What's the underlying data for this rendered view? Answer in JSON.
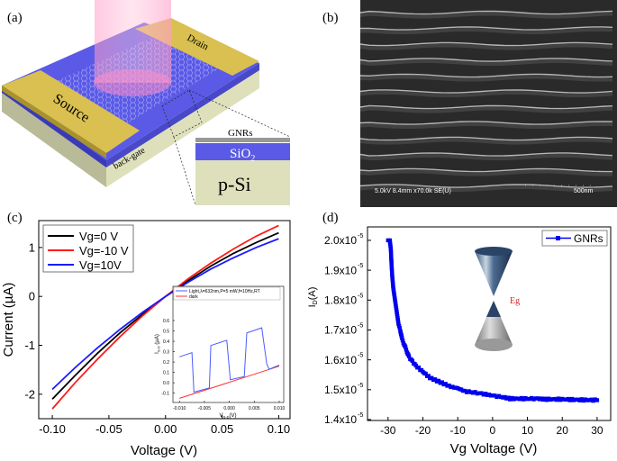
{
  "panels": {
    "a": {
      "label": "(a)",
      "source": "Source",
      "drain": "Drain",
      "back_gate": "back-gate",
      "gnrs": "GNRs",
      "sio2": "SiO",
      "sio2_sub": "2",
      "psi": "p-Si"
    },
    "b": {
      "label": "(b)",
      "sem_info": "5.0kV 8.4mm x70.0k SE(U)",
      "scale_bar": "500nm"
    },
    "c": {
      "label": "(c)"
    },
    "d": {
      "label": "(d)",
      "eg_label": "Eg"
    }
  },
  "colors": {
    "black_curve": "#000000",
    "red_curve": "#ff1a1a",
    "blue_curve": "#1a1aff",
    "inset_light": "#4a5cff",
    "inset_dark": "#ff3030",
    "gnrs_series": "#0000ee",
    "sio2": "#5a5ae6",
    "gold": "#d9c050",
    "substrate": "#dde0bb",
    "eg": "#e02020"
  },
  "chart_data": [
    {
      "type": "line",
      "xlabel": "Voltage (V)",
      "ylabel": "Current (µA)",
      "xlim": [
        -0.112,
        0.11
      ],
      "ylim": [
        -2.5,
        1.55
      ],
      "xticks": [
        -0.1,
        -0.05,
        0,
        0.05,
        0.1
      ],
      "xtick_labels": [
        "-0.10",
        "-0.05",
        "0.00",
        "0.05",
        "0.10"
      ],
      "yticks": [
        -2,
        -1,
        0,
        1
      ],
      "ytick_labels": [
        "-2",
        "-1",
        "0",
        "1"
      ],
      "legend": "top-left",
      "x": [
        -0.1,
        -0.08,
        -0.06,
        -0.04,
        -0.02,
        0,
        0.02,
        0.04,
        0.06,
        0.08,
        0.1
      ],
      "series": [
        {
          "name": "Vg=0 V",
          "color": "#000000",
          "values": [
            -2.1,
            -1.62,
            -1.16,
            -0.74,
            -0.36,
            0,
            0.32,
            0.62,
            0.88,
            1.1,
            1.3
          ]
        },
        {
          "name": "Vg=-10 V",
          "color": "#ff1a1a",
          "values": [
            -2.3,
            -1.77,
            -1.28,
            -0.82,
            -0.39,
            0,
            0.36,
            0.68,
            0.97,
            1.23,
            1.45
          ]
        },
        {
          "name": "Vg=10V",
          "color": "#1a1aff",
          "values": [
            -1.9,
            -1.46,
            -1.05,
            -0.67,
            -0.32,
            0,
            0.29,
            0.56,
            0.79,
            1.0,
            1.18
          ]
        }
      ]
    },
    {
      "type": "line",
      "xlabel": "V",
      "xlabel_sub": "S-D",
      "xlabel_unit": "(V)",
      "ylabel": "I",
      "ylabel_sub": "S-D",
      "ylabel_unit": " (µA)",
      "xlim": [
        -0.0113,
        0.0109
      ],
      "ylim": [
        -0.19,
        0.93
      ],
      "xticks": [
        -0.01,
        -0.005,
        0,
        0.005,
        0.01
      ],
      "xtick_labels": [
        "-0.010",
        "-0.005",
        "0.000",
        "0.005",
        "0.010"
      ],
      "yticks": [
        -0.1,
        0,
        0.1,
        0.2,
        0.3,
        0.4,
        0.5,
        0.6
      ],
      "ytick_labels": [
        "-0.1",
        "0.0",
        "0.1",
        "0.2",
        "0.3",
        "0.4",
        "0.5",
        "0.6"
      ],
      "legend": "top",
      "series": [
        {
          "name": "Light,λ=632nm,P=5 mW,f=10Hz,RT",
          "color": "#4a5cff",
          "x": [
            -0.01,
            -0.0075,
            -0.0071,
            -0.004,
            -0.0037,
            -0.0005,
            0.0002,
            0.003,
            0.0035,
            0.0065,
            0.0075,
            0.008,
            0.01
          ],
          "y": [
            0.25,
            0.29,
            -0.09,
            -0.05,
            0.36,
            0.41,
            0.03,
            0.06,
            0.48,
            0.53,
            0.18,
            0.13,
            0.17
          ]
        },
        {
          "name": "dark",
          "color": "#ff3030",
          "x": [
            -0.01,
            0.01
          ],
          "y": [
            -0.15,
            0.16
          ]
        }
      ]
    },
    {
      "type": "line",
      "xlabel": "Vg Voltage (V)",
      "ylabel": "I",
      "ylabel_sub": "D",
      "ylabel_unit": "(A)",
      "xlim": [
        -35.9,
        33.9
      ],
      "ylim": [
        1.397e-05,
        2.045e-05
      ],
      "xticks": [
        -30,
        -20,
        -10,
        0,
        10,
        20,
        30
      ],
      "xtick_labels": [
        "-30",
        "-20",
        "-10",
        "0",
        "10",
        "20",
        "30"
      ],
      "yticks": [
        1.4e-05,
        1.5e-05,
        1.6e-05,
        1.7e-05,
        1.8e-05,
        1.9e-05,
        2e-05
      ],
      "ytick_labels": [
        {
          "base": "1.4x10",
          "exp": "-5"
        },
        {
          "base": "1.5x10",
          "exp": "-5"
        },
        {
          "base": "1.6x10",
          "exp": "-5"
        },
        {
          "base": "1.7x10",
          "exp": "-5"
        },
        {
          "base": "1.8x10",
          "exp": "-5"
        },
        {
          "base": "1.9x10",
          "exp": "-5"
        },
        {
          "base": "2.0x10",
          "exp": "-5"
        }
      ],
      "legend": "top-right",
      "series": [
        {
          "name": "GNRs",
          "color": "#0000ee",
          "marker": "square",
          "x": [
            -30,
            -29.5,
            -29.2,
            -29,
            -28.8,
            -28.5,
            -28,
            -27.5,
            -27,
            -26.5,
            -26,
            -25,
            -24,
            -22,
            -20,
            -18,
            -15,
            -12,
            -10,
            -8,
            -5,
            -2,
            0,
            3,
            5,
            10,
            13,
            15,
            20,
            25,
            30
          ],
          "y": [
            2e-05,
            2e-05,
            1.97e-05,
            1.92e-05,
            1.88e-05,
            1.84e-05,
            1.8e-05,
            1.76e-05,
            1.72e-05,
            1.7e-05,
            1.67e-05,
            1.64e-05,
            1.61e-05,
            1.58e-05,
            1.56e-05,
            1.54e-05,
            1.525e-05,
            1.51e-05,
            1.505e-05,
            1.495e-05,
            1.49e-05,
            1.485e-05,
            1.48e-05,
            1.475e-05,
            1.47e-05,
            1.47e-05,
            1.47e-05,
            1.468e-05,
            1.468e-05,
            1.466e-05,
            1.465e-05
          ]
        }
      ]
    }
  ]
}
